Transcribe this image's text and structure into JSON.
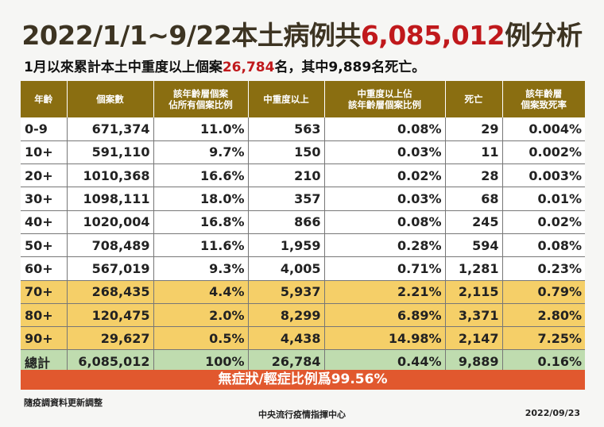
{
  "title": {
    "part1": "2022/1/1~9/22本土病例共",
    "number": "6,085,012",
    "part2": "例分析"
  },
  "subtitle": {
    "part1": "1月以來累計本土中重度以上個案",
    "number": "26,784",
    "part2": "名，其中9,889名死亡。"
  },
  "table": {
    "headers": [
      "年齡",
      "個案數",
      "該年齡層個案\n佔所有個案比例",
      "中重度以上",
      "中重度以上佔\n該年齡層個案比例",
      "死亡",
      "該年齡層\n個案致死率"
    ],
    "rows": [
      [
        "0-9",
        "671,374",
        "11.0%",
        "563",
        "0.08%",
        "29",
        "0.004%"
      ],
      [
        "10+",
        "591,110",
        "9.7%",
        "150",
        "0.03%",
        "11",
        "0.002%"
      ],
      [
        "20+",
        "1010,368",
        "16.6%",
        "210",
        "0.02%",
        "28",
        "0.003%"
      ],
      [
        "30+",
        "1098,111",
        "18.0%",
        "357",
        "0.03%",
        "68",
        "0.01%"
      ],
      [
        "40+",
        "1020,004",
        "16.8%",
        "866",
        "0.08%",
        "245",
        "0.02%"
      ],
      [
        "50+",
        "708,489",
        "11.6%",
        "1,959",
        "0.28%",
        "594",
        "0.08%"
      ],
      [
        "60+",
        "567,019",
        "9.3%",
        "4,005",
        "0.71%",
        "1,281",
        "0.23%"
      ],
      [
        "70+",
        "268,435",
        "4.4%",
        "5,937",
        "2.21%",
        "2,115",
        "0.79%"
      ],
      [
        "80+",
        "120,475",
        "2.0%",
        "8,299",
        "6.89%",
        "3,371",
        "2.80%"
      ],
      [
        "90+",
        "29,627",
        "0.5%",
        "4,438",
        "14.98%",
        "2,147",
        "7.25%"
      ],
      [
        "總計",
        "6,085,012",
        "100%",
        "26,784",
        "0.44%",
        "9,889",
        "0.16%"
      ]
    ]
  },
  "banner": "無症狀/輕症比例爲99.56%",
  "footer": {
    "note": "隨疫調資料更新調整",
    "source": "中央流行疫情指揮中心",
    "date": "2022/09/23"
  },
  "colors": {
    "header": "#8a6e11",
    "elderly_rows": "#f5cf68",
    "total_row": "#bfdcaf",
    "banner": "#e1582e",
    "highlight_text": "#c0191c"
  }
}
